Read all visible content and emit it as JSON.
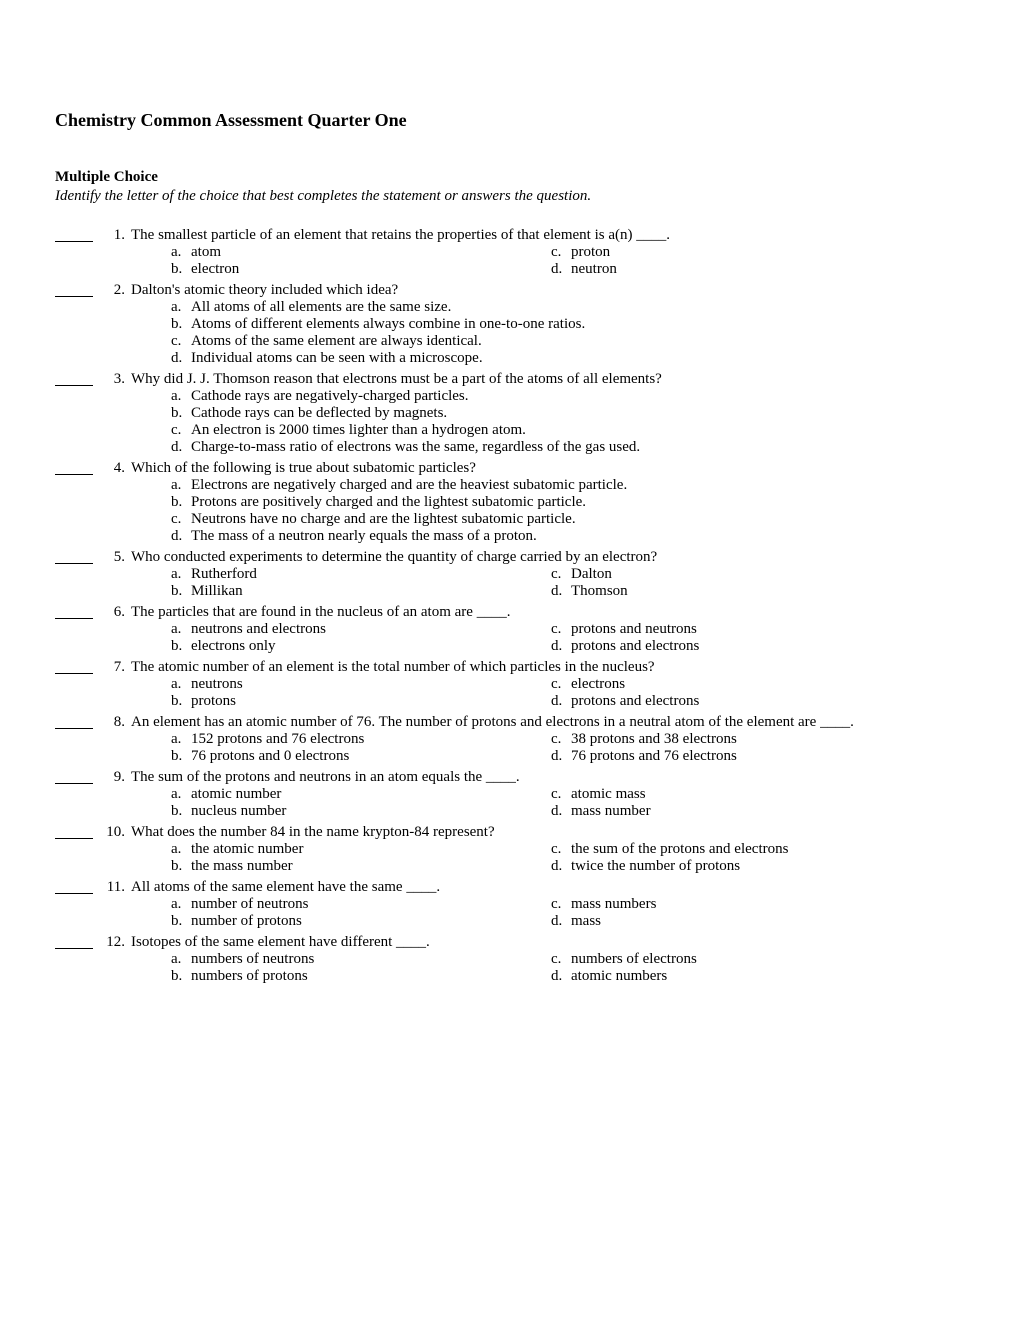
{
  "title": "Chemistry Common Assessment Quarter One",
  "section_heading": "Multiple Choice",
  "instructions": "Identify the letter of the choice that best completes the statement or answers the question.",
  "letters": {
    "a": "a.",
    "b": "b.",
    "c": "c.",
    "d": "d."
  },
  "q": [
    {
      "num": "1.",
      "stem": "The smallest particle of an element that retains the properties of that element is a(n) ____.",
      "layout": "two-col",
      "a": "atom",
      "b": "electron",
      "c": "proton",
      "d": "neutron"
    },
    {
      "num": "2.",
      "stem": "Dalton's atomic theory included which idea?",
      "layout": "one-col",
      "a": "All atoms of all elements are the same size.",
      "b": "Atoms of different elements always combine in one-to-one ratios.",
      "c": "Atoms of the same element are always identical.",
      "d": "Individual atoms can be seen with a microscope."
    },
    {
      "num": "3.",
      "stem": "Why did J. J. Thomson reason that electrons must be a part of the atoms of all elements?",
      "layout": "one-col",
      "a": "Cathode rays are negatively-charged particles.",
      "b": "Cathode rays can be deflected by magnets.",
      "c": "An electron is 2000 times lighter than a hydrogen atom.",
      "d": "Charge-to-mass ratio of electrons was the same, regardless of the gas used."
    },
    {
      "num": "4.",
      "stem": "Which of the following is true about subatomic particles?",
      "layout": "one-col",
      "a": "Electrons are negatively charged and are the heaviest subatomic particle.",
      "b": "Protons are positively charged and the lightest subatomic particle.",
      "c": "Neutrons have no charge and are the lightest subatomic particle.",
      "d": "The mass of a neutron nearly equals the mass of a proton."
    },
    {
      "num": "5.",
      "stem": "Who conducted experiments to determine the quantity of charge carried by an electron?",
      "layout": "two-col",
      "a": "Rutherford",
      "b": "Millikan",
      "c": "Dalton",
      "d": "Thomson"
    },
    {
      "num": "6.",
      "stem": "The particles that are found in the nucleus of an atom are ____.",
      "layout": "two-col",
      "a": "neutrons and electrons",
      "b": "electrons only",
      "c": "protons and neutrons",
      "d": "protons and electrons"
    },
    {
      "num": "7.",
      "stem": "The atomic number of an element is the total number of which particles in the nucleus?",
      "layout": "two-col",
      "a": "neutrons",
      "b": "protons",
      "c": "electrons",
      "d": "protons and electrons"
    },
    {
      "num": "8.",
      "stem": "An element has an atomic number of 76. The number of protons and electrons in a neutral atom of the element are ____.",
      "layout": "two-col",
      "a": "152 protons and 76 electrons",
      "b": "76 protons and 0 electrons",
      "c": "38 protons and 38 electrons",
      "d": "76 protons and 76 electrons"
    },
    {
      "num": "9.",
      "stem": "The sum of the protons and neutrons in an atom equals the ____.",
      "layout": "two-col",
      "a": "atomic number",
      "b": "nucleus number",
      "c": "atomic mass",
      "d": "mass number"
    },
    {
      "num": "10.",
      "stem": "What does the number 84 in the name krypton-84 represent?",
      "layout": "two-col",
      "a": "the atomic number",
      "b": "the mass number",
      "c": "the sum of the protons and electrons",
      "d": "twice the number of protons"
    },
    {
      "num": "11.",
      "stem": "All atoms of the same element have the same ____.",
      "layout": "two-col",
      "a": "number of neutrons",
      "b": "number of protons",
      "c": "mass numbers",
      "d": "mass"
    },
    {
      "num": "12.",
      "stem": "Isotopes of the same element have different ____.",
      "layout": "two-col",
      "a": "numbers of neutrons",
      "b": "numbers of protons",
      "c": "numbers of electrons",
      "d": "atomic numbers"
    }
  ]
}
